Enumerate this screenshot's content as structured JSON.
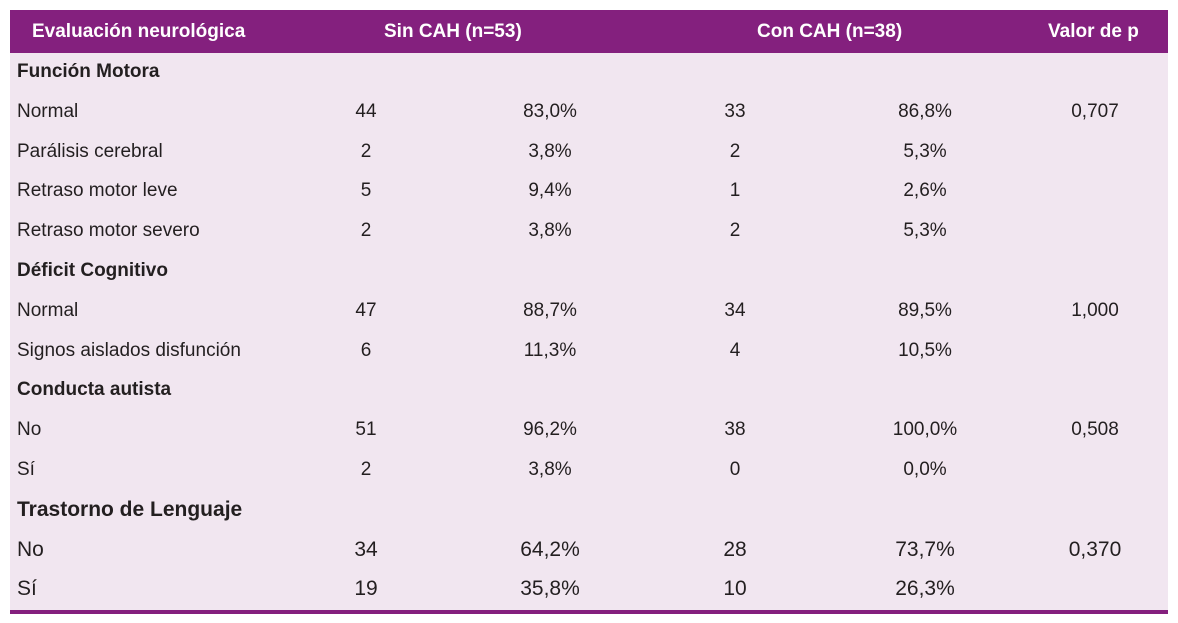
{
  "header": {
    "col0": "Evaluación neurológica",
    "col1": "Sin CAH (n=53)",
    "col2": "Con CAH (n=38)",
    "col3": "Valor de p"
  },
  "rows": [
    {
      "type": "section",
      "label": "Función Motora"
    },
    {
      "type": "data",
      "label": "Normal",
      "n1": "44",
      "p1": "83,0%",
      "n2": "33",
      "p2": "86,8%",
      "pval": "0,707"
    },
    {
      "type": "data",
      "label": "Parálisis cerebral",
      "n1": "2",
      "p1": "3,8%",
      "n2": "2",
      "p2": "5,3%",
      "pval": ""
    },
    {
      "type": "data",
      "label": "Retraso motor leve",
      "n1": "5",
      "p1": "9,4%",
      "n2": "1",
      "p2": "2,6%",
      "pval": ""
    },
    {
      "type": "data",
      "label": "Retraso motor severo",
      "n1": "2",
      "p1": "3,8%",
      "n2": "2",
      "p2": "5,3%",
      "pval": ""
    },
    {
      "type": "section",
      "label": "Déficit Cognitivo"
    },
    {
      "type": "data",
      "label": "Normal",
      "n1": "47",
      "p1": "88,7%",
      "n2": "34",
      "p2": "89,5%",
      "pval": "1,000"
    },
    {
      "type": "data",
      "label": "Signos aislados disfunción",
      "n1": "6",
      "p1": "11,3%",
      "n2": "4",
      "p2": "10,5%",
      "pval": ""
    },
    {
      "type": "section",
      "label": "Conducta autista"
    },
    {
      "type": "data",
      "label": "No",
      "n1": "51",
      "p1": "96,2%",
      "n2": "38",
      "p2": "100,0%",
      "pval": "0,508"
    },
    {
      "type": "data",
      "label": "Sí",
      "n1": "2",
      "p1": "3,8%",
      "n2": "0",
      "p2": "0,0%",
      "pval": ""
    },
    {
      "type": "section",
      "label": "Trastorno de Lenguaje",
      "big": true
    },
    {
      "type": "data",
      "label": "No",
      "n1": "34",
      "p1": "64,2%",
      "n2": "28",
      "p2": "73,7%",
      "pval": "0,370",
      "big": true
    },
    {
      "type": "data",
      "label": "Sí",
      "n1": "19",
      "p1": "35,8%",
      "n2": "10",
      "p2": "26,3%",
      "pval": "",
      "big": true
    }
  ],
  "colors": {
    "header_bg": "#84207e",
    "body_bg": "#f1e6f0",
    "header_text": "#ffffff"
  }
}
